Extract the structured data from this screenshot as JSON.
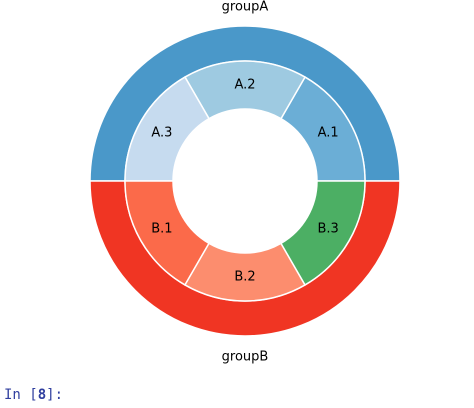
{
  "notebook": {
    "prompt_prefix": "In [",
    "prompt_number": "8",
    "prompt_suffix": "]:",
    "prompt_color": "#303f9f"
  },
  "chart_data": {
    "type": "pie",
    "subtype": "nested-donut",
    "start_angle": 0,
    "counterclock": true,
    "outer": {
      "labels": [
        "groupA",
        "groupB"
      ],
      "values": [
        3,
        3
      ],
      "colors": [
        "#4a98c9",
        "#f03523"
      ]
    },
    "inner": {
      "labels": [
        "A.1",
        "A.2",
        "A.3",
        "B.1",
        "B.2",
        "B.3"
      ],
      "values": [
        1,
        1,
        1,
        1,
        1,
        1
      ],
      "colors": [
        "#6baed6",
        "#9ecae1",
        "#c6dbef",
        "#fb6a4a",
        "#fc8d6e",
        "#4caf64"
      ]
    }
  }
}
